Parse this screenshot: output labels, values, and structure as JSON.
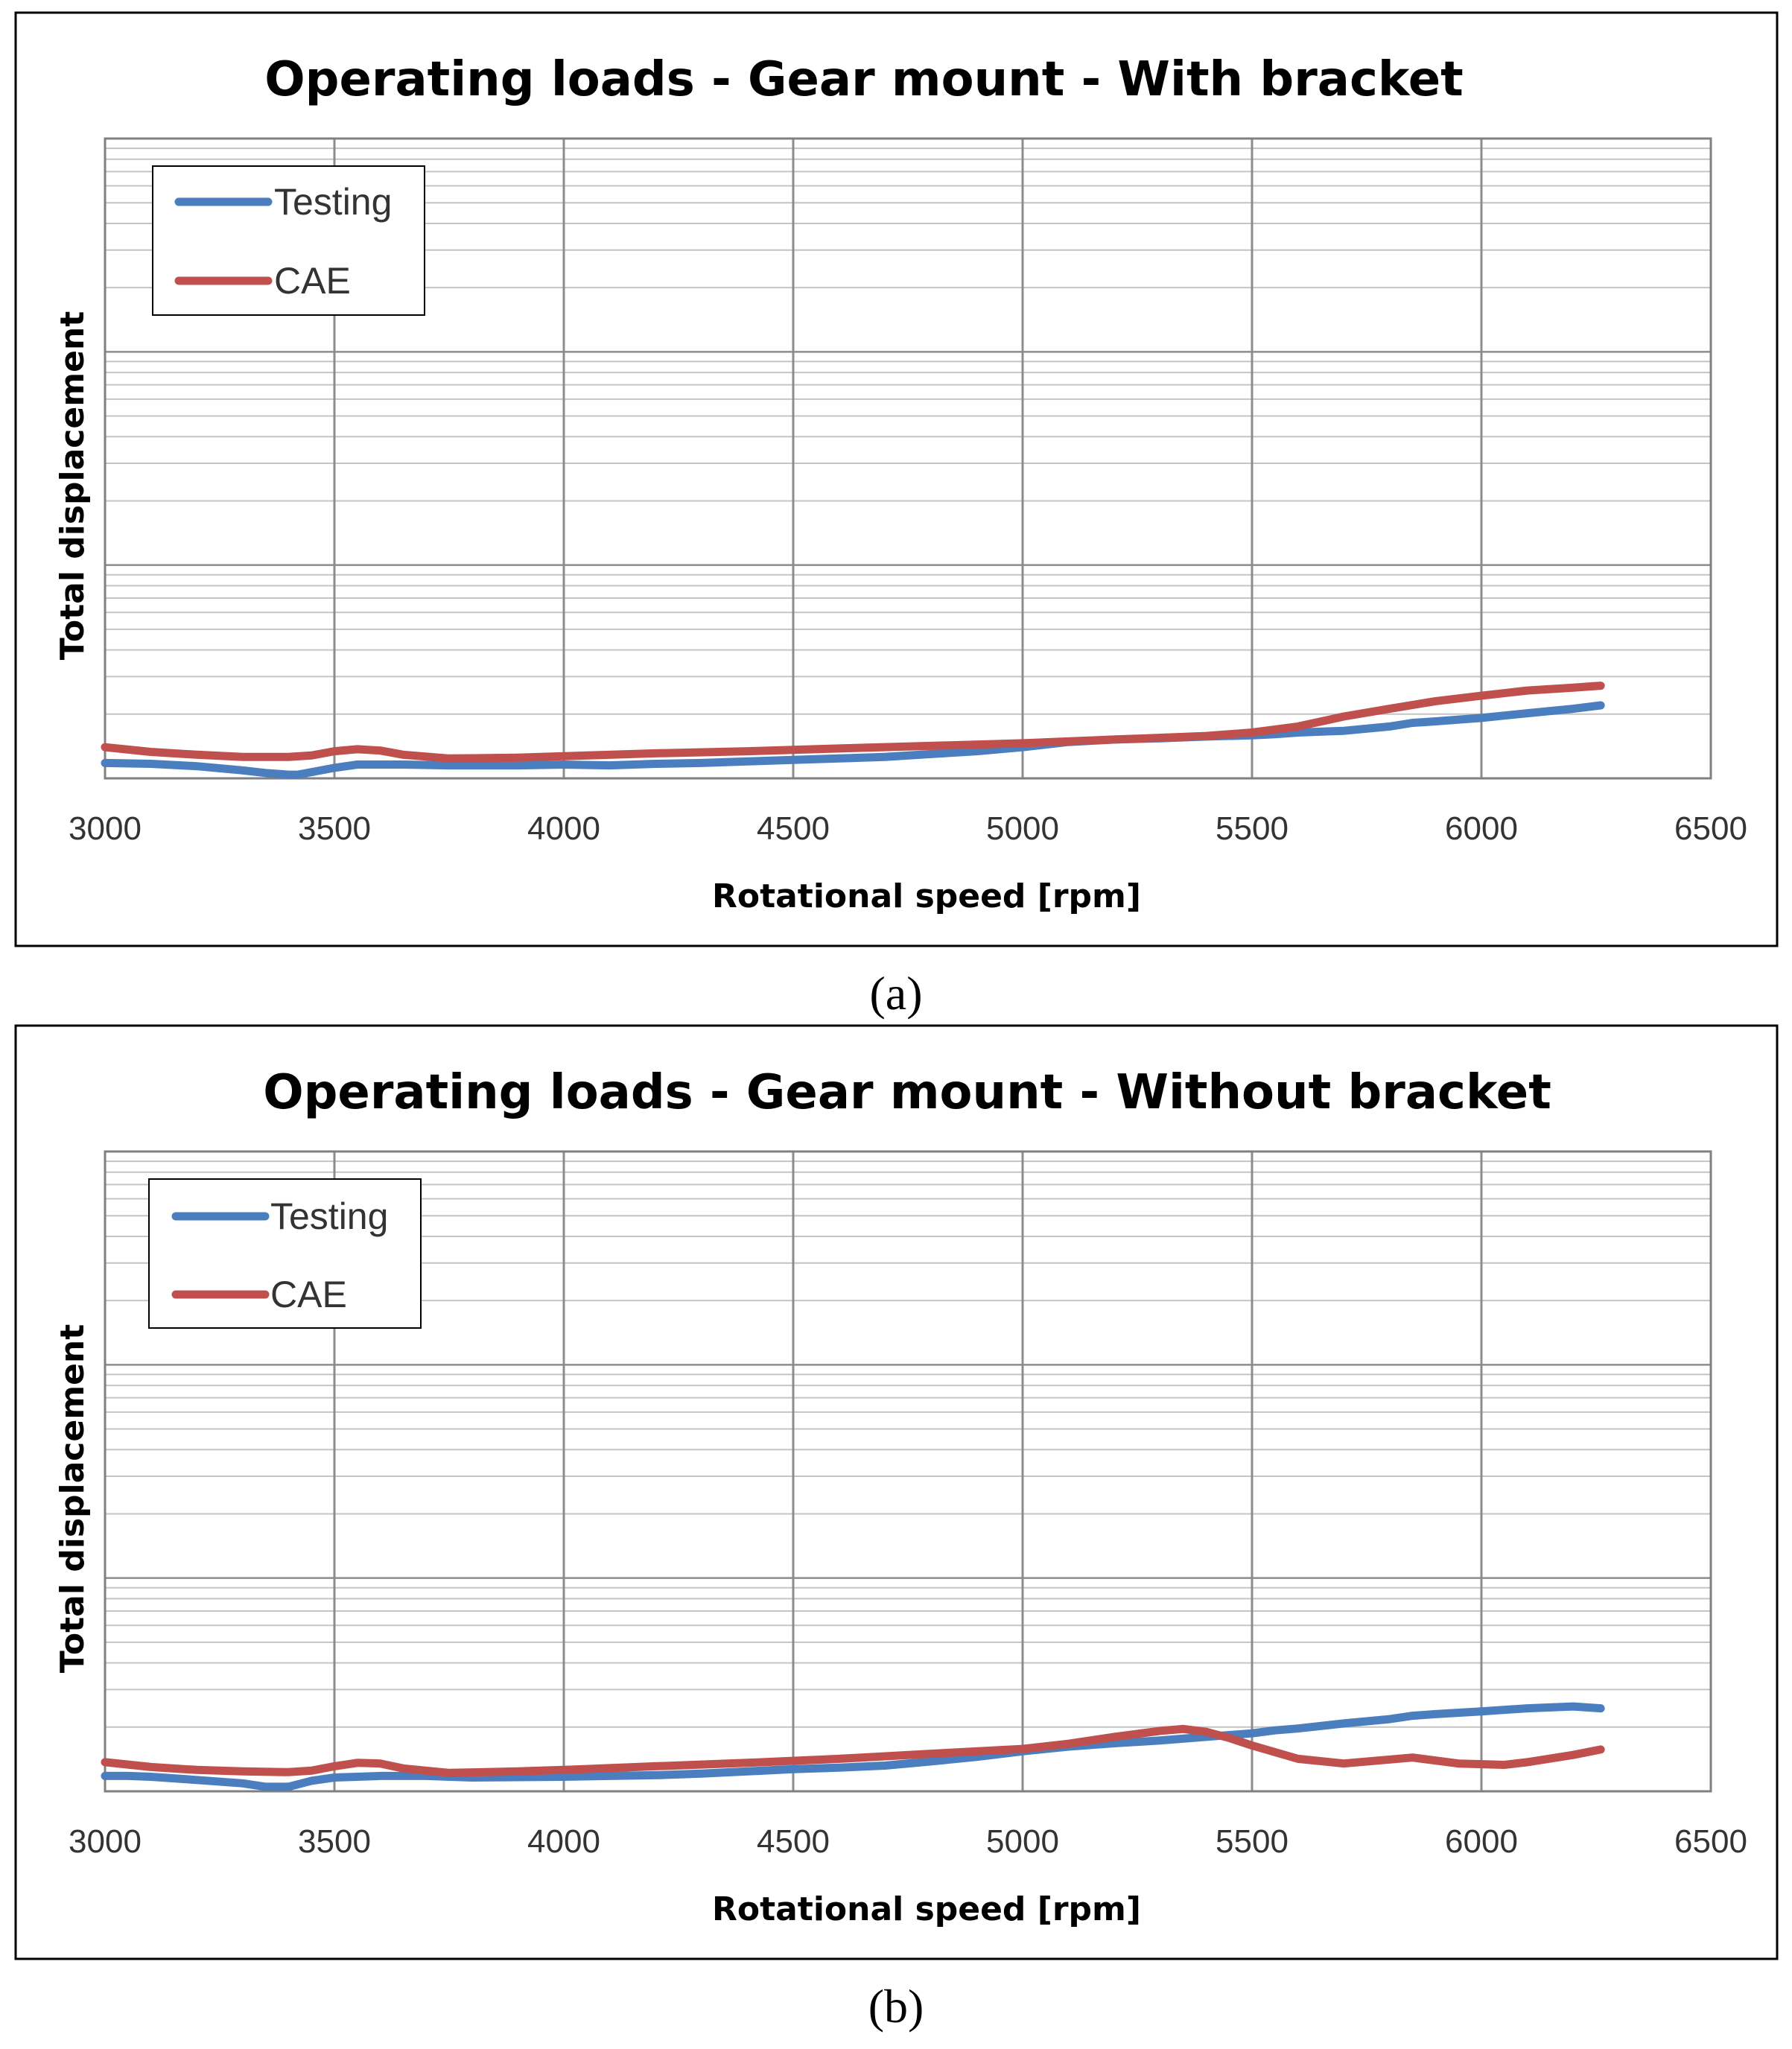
{
  "colors": {
    "testing": "#4a7ebf",
    "cae": "#c0504d",
    "grid_major": "#8c8c8c",
    "grid_minor": "#c4c4c4",
    "frame": "#000000"
  },
  "chart_data": [
    {
      "type": "line",
      "panel_caption": "(a)",
      "title": "Operating loads - Gear mount - With bracket",
      "xlabel": "Rotational speed [rpm]",
      "ylabel": "Total displacement",
      "xlim": [
        3000,
        6500
      ],
      "xticks": [
        "3000",
        "3500",
        "4000",
        "4500",
        "5000",
        "5500",
        "6000",
        "6500"
      ],
      "yscale": "log",
      "ylim_decades": [
        0,
        3
      ],
      "yticks_shown": false,
      "legend": {
        "position": "top-left",
        "entries": [
          "Testing",
          "CAE"
        ]
      },
      "series": [
        {
          "name": "Testing",
          "color_key": "testing",
          "x": [
            3000,
            3100,
            3200,
            3300,
            3350,
            3400,
            3420,
            3500,
            3550,
            3650,
            3750,
            3900,
            4000,
            4100,
            4200,
            4300,
            4400,
            4500,
            4600,
            4700,
            4800,
            4900,
            5000,
            5050,
            5100,
            5200,
            5300,
            5400,
            5500,
            5550,
            5600,
            5700,
            5800,
            5850,
            5900,
            6000,
            6100,
            6200,
            6260
          ],
          "y": [
            1.18,
            1.17,
            1.14,
            1.09,
            1.06,
            1.04,
            1.04,
            1.12,
            1.16,
            1.16,
            1.15,
            1.15,
            1.16,
            1.15,
            1.17,
            1.18,
            1.2,
            1.22,
            1.24,
            1.26,
            1.3,
            1.34,
            1.4,
            1.44,
            1.48,
            1.52,
            1.54,
            1.57,
            1.59,
            1.61,
            1.64,
            1.67,
            1.75,
            1.82,
            1.85,
            1.92,
            2.02,
            2.12,
            2.2
          ]
        },
        {
          "name": "CAE",
          "color_key": "cae",
          "x": [
            3000,
            3100,
            3200,
            3300,
            3400,
            3450,
            3500,
            3550,
            3600,
            3650,
            3750,
            3900,
            4000,
            4200,
            4400,
            4600,
            4800,
            5000,
            5200,
            5400,
            5500,
            5600,
            5700,
            5800,
            5900,
            6000,
            6100,
            6200,
            6260
          ],
          "y": [
            1.4,
            1.33,
            1.29,
            1.26,
            1.26,
            1.28,
            1.34,
            1.37,
            1.35,
            1.29,
            1.24,
            1.25,
            1.27,
            1.31,
            1.34,
            1.38,
            1.42,
            1.46,
            1.52,
            1.58,
            1.64,
            1.75,
            1.95,
            2.12,
            2.3,
            2.44,
            2.58,
            2.66,
            2.72
          ]
        }
      ]
    },
    {
      "type": "line",
      "panel_caption": "(b)",
      "title": "Operating loads - Gear mount - Without bracket",
      "xlabel": "Rotational speed [rpm]",
      "ylabel": "Total displacement",
      "xlim": [
        3000,
        6500
      ],
      "xticks": [
        "3000",
        "3500",
        "4000",
        "4500",
        "5000",
        "5500",
        "6000",
        "6500"
      ],
      "yscale": "log",
      "ylim_decades": [
        0,
        3
      ],
      "yticks_shown": false,
      "legend": {
        "position": "top-left",
        "entries": [
          "Testing",
          "CAE"
        ]
      },
      "series": [
        {
          "name": "Testing",
          "color_key": "testing",
          "x": [
            3000,
            3050,
            3100,
            3200,
            3300,
            3350,
            3400,
            3450,
            3500,
            3550,
            3600,
            3700,
            3800,
            4000,
            4100,
            4200,
            4300,
            4400,
            4500,
            4600,
            4700,
            4800,
            4900,
            5000,
            5100,
            5200,
            5300,
            5400,
            5500,
            5550,
            5600,
            5700,
            5800,
            5850,
            5900,
            6000,
            6100,
            6200,
            6260
          ],
          "y": [
            1.18,
            1.18,
            1.17,
            1.13,
            1.09,
            1.05,
            1.05,
            1.12,
            1.16,
            1.17,
            1.18,
            1.18,
            1.16,
            1.17,
            1.18,
            1.19,
            1.21,
            1.24,
            1.27,
            1.29,
            1.32,
            1.38,
            1.45,
            1.54,
            1.62,
            1.68,
            1.73,
            1.8,
            1.87,
            1.93,
            1.97,
            2.08,
            2.18,
            2.26,
            2.3,
            2.37,
            2.45,
            2.5,
            2.45
          ]
        },
        {
          "name": "CAE",
          "color_key": "cae",
          "x": [
            3000,
            3100,
            3200,
            3300,
            3400,
            3450,
            3500,
            3550,
            3600,
            3650,
            3750,
            3900,
            4000,
            4200,
            4400,
            4600,
            4800,
            5000,
            5100,
            5200,
            5300,
            5350,
            5400,
            5450,
            5500,
            5600,
            5700,
            5850,
            5950,
            6050,
            6100,
            6200,
            6260
          ],
          "y": [
            1.37,
            1.3,
            1.26,
            1.24,
            1.23,
            1.25,
            1.31,
            1.36,
            1.35,
            1.28,
            1.22,
            1.24,
            1.26,
            1.31,
            1.36,
            1.42,
            1.5,
            1.58,
            1.67,
            1.8,
            1.92,
            1.96,
            1.9,
            1.78,
            1.64,
            1.42,
            1.35,
            1.44,
            1.35,
            1.33,
            1.37,
            1.48,
            1.57
          ]
        }
      ]
    }
  ]
}
